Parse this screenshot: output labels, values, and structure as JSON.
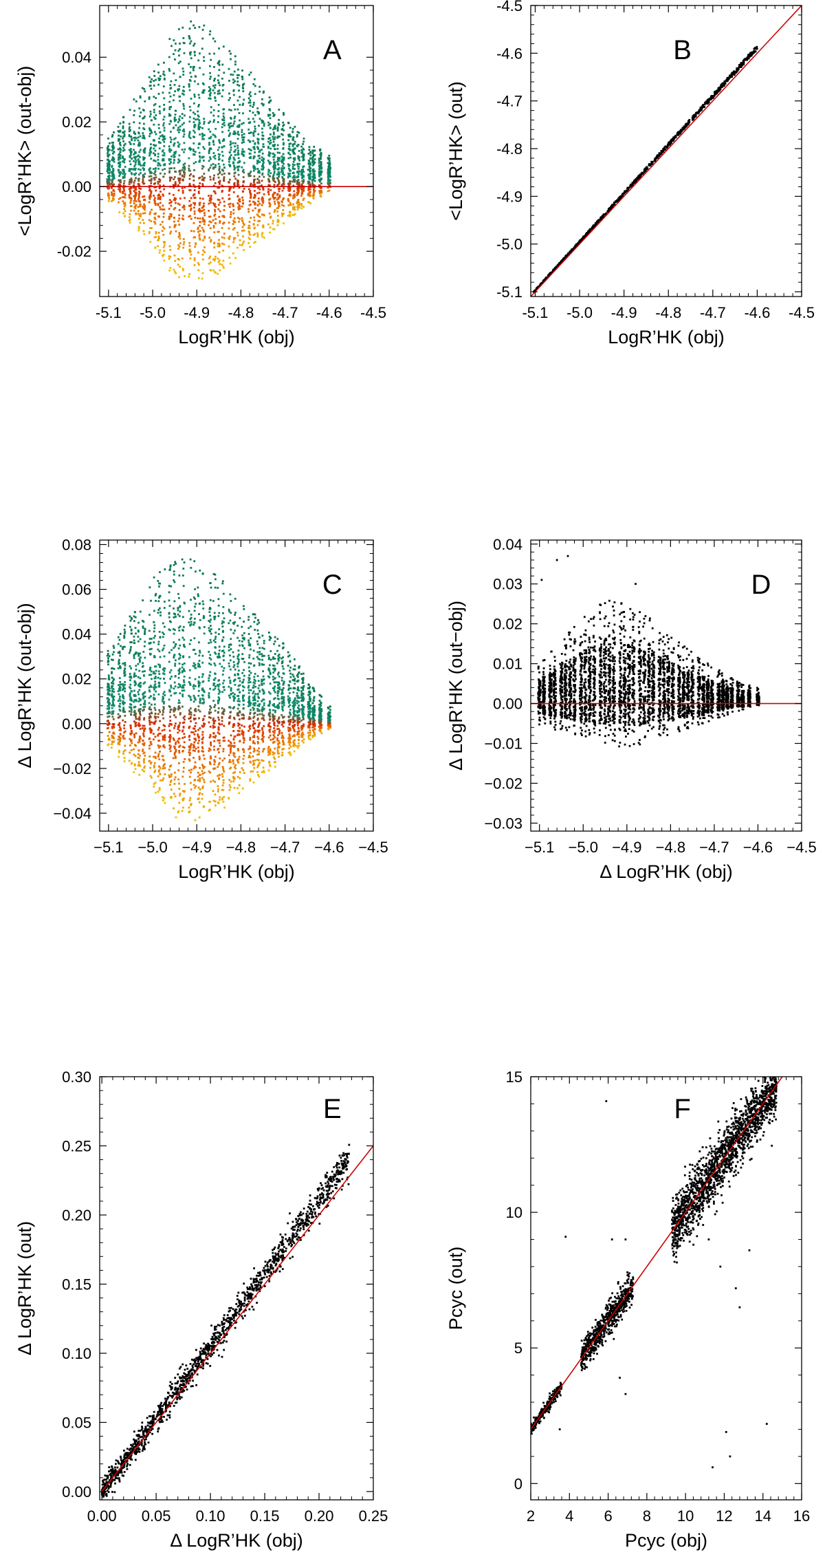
{
  "figure": {
    "colors": {
      "reference_line": "#cc0000",
      "black_points": "#000000",
      "teal": "#0e8a6a",
      "green": "#0b6e45",
      "red": "#d42a00",
      "orange": "#ea7a00",
      "yellow": "#f0c400"
    }
  },
  "chart_data": [
    {
      "panel": "A",
      "type": "scatter",
      "color_mode": "diff",
      "xlabel": "LogR’HK (obj)",
      "ylabel": "<LogR’HK> (out-obj)",
      "xlim": [
        -5.12,
        -4.5
      ],
      "ylim": [
        -0.034,
        0.056
      ],
      "xticks": [
        -5.1,
        -5.0,
        -4.9,
        -4.8,
        -4.7,
        -4.6,
        -4.5
      ],
      "xtick_labels": [
        "-5.1",
        "-5.0",
        "-4.9",
        "-4.8",
        "-4.7",
        "-4.6",
        "-4.5"
      ],
      "yticks": [
        -0.02,
        0.0,
        0.02,
        0.04
      ],
      "ytick_labels": [
        "-0.02",
        "0.00",
        "0.02",
        "0.04"
      ],
      "reference_line": {
        "kind": "horizontal",
        "y": 0.0
      },
      "columns_x": [
        -5.1,
        -5.09,
        -5.075,
        -5.065,
        -5.05,
        -5.04,
        -5.03,
        -5.02,
        -5.005,
        -4.995,
        -4.985,
        -4.975,
        -4.96,
        -4.95,
        -4.94,
        -4.93,
        -4.915,
        -4.905,
        -4.895,
        -4.885,
        -4.87,
        -4.86,
        -4.85,
        -4.84,
        -4.825,
        -4.815,
        -4.805,
        -4.795,
        -4.78,
        -4.77,
        -4.76,
        -4.75,
        -4.735,
        -4.725,
        -4.715,
        -4.705,
        -4.69,
        -4.68,
        -4.67,
        -4.66,
        -4.645,
        -4.635,
        -4.62,
        -4.6
      ],
      "envelope": {
        "x": [
          -5.11,
          -5.0,
          -4.95,
          -4.9,
          -4.85,
          -4.8,
          -4.75,
          -4.7,
          -4.65,
          -4.6
        ],
        "top": [
          0.013,
          0.035,
          0.049,
          0.052,
          0.046,
          0.039,
          0.03,
          0.022,
          0.014,
          0.01
        ],
        "bottom": [
          -0.004,
          -0.018,
          -0.028,
          -0.03,
          -0.027,
          -0.021,
          -0.016,
          -0.011,
          -0.006,
          -0.002
        ]
      },
      "annotation": "A",
      "annotation_pos": "top-right"
    },
    {
      "panel": "B",
      "type": "scatter",
      "color_mode": "black",
      "xlabel": "LogR’HK (obj)",
      "ylabel": "<LogR’HK> (out)",
      "xlim": [
        -5.11,
        -4.5
      ],
      "ylim": [
        -5.11,
        -4.5
      ],
      "xticks": [
        -5.1,
        -5.0,
        -4.9,
        -4.8,
        -4.7,
        -4.6,
        -4.5
      ],
      "xtick_labels": [
        "-5.1",
        "-5.0",
        "-4.9",
        "-4.8",
        "-4.7",
        "-4.6",
        "-4.5"
      ],
      "yticks": [
        -5.1,
        -5.0,
        -4.9,
        -4.8,
        -4.7,
        -4.6,
        -4.5
      ],
      "ytick_labels": [
        "-5.1",
        "-5.0",
        "-4.9",
        "-4.8",
        "-4.7",
        "-4.6",
        "-4.5"
      ],
      "reference_line": {
        "kind": "diagonal",
        "from": [
          -5.11,
          -5.11
        ],
        "to": [
          -4.5,
          -4.5
        ]
      },
      "trend": {
        "x_range": [
          -5.105,
          -4.6
        ],
        "offset_at_start": 0.003,
        "offset_at_end": 0.012
      },
      "annotation": "B",
      "annotation_pos": "top-center"
    },
    {
      "panel": "C",
      "type": "scatter",
      "color_mode": "diff",
      "xlabel": "LogR’HK (obj)",
      "ylabel": "Δ LogR’HK (out-obj)",
      "xlim": [
        -5.12,
        -4.5
      ],
      "ylim": [
        -0.048,
        0.082
      ],
      "xticks": [
        -5.1,
        -5.0,
        -4.9,
        -4.8,
        -4.7,
        -4.6,
        -4.5
      ],
      "xtick_labels": [
        "−5.1",
        "−5.0",
        "−4.9",
        "−4.8",
        "−4.7",
        "−4.6",
        "−4.5"
      ],
      "yticks": [
        -0.04,
        -0.02,
        0.0,
        0.02,
        0.04,
        0.06,
        0.08
      ],
      "ytick_labels": [
        "−0.04",
        "−0.02",
        "0.00",
        "0.02",
        "0.04",
        "0.06",
        "0.08"
      ],
      "columns_x": [
        -5.1,
        -5.09,
        -5.075,
        -5.065,
        -5.05,
        -5.04,
        -5.03,
        -5.02,
        -5.005,
        -4.995,
        -4.985,
        -4.975,
        -4.96,
        -4.95,
        -4.94,
        -4.93,
        -4.915,
        -4.905,
        -4.895,
        -4.885,
        -4.87,
        -4.86,
        -4.85,
        -4.84,
        -4.825,
        -4.815,
        -4.805,
        -4.795,
        -4.78,
        -4.77,
        -4.76,
        -4.75,
        -4.735,
        -4.725,
        -4.715,
        -4.705,
        -4.69,
        -4.68,
        -4.67,
        -4.66,
        -4.645,
        -4.635,
        -4.62,
        -4.6
      ],
      "envelope": {
        "x": [
          -5.11,
          -5.0,
          -4.95,
          -4.9,
          -4.85,
          -4.8,
          -4.75,
          -4.7,
          -4.65,
          -4.6
        ],
        "top": [
          0.03,
          0.065,
          0.075,
          0.073,
          0.066,
          0.055,
          0.045,
          0.035,
          0.02,
          0.008
        ],
        "bottom": [
          -0.008,
          -0.03,
          -0.042,
          -0.046,
          -0.04,
          -0.032,
          -0.024,
          -0.016,
          -0.008,
          -0.003
        ]
      },
      "annotation": "C",
      "annotation_pos": "top-right"
    },
    {
      "panel": "D",
      "type": "scatter",
      "color_mode": "black",
      "xlabel": "Δ LogR’HK (obj)",
      "ylabel": "Δ LogR’HK (out−obj)",
      "xlim": [
        -5.12,
        -4.5
      ],
      "ylim": [
        -0.032,
        0.041
      ],
      "xticks": [
        -5.1,
        -5.0,
        -4.9,
        -4.8,
        -4.7,
        -4.6,
        -4.5
      ],
      "xtick_labels": [
        "−5.1",
        "−5.0",
        "−4.9",
        "−4.8",
        "−4.7",
        "−4.6",
        "−4.5"
      ],
      "yticks": [
        -0.03,
        -0.02,
        -0.01,
        0.0,
        0.01,
        0.02,
        0.03,
        0.04
      ],
      "ytick_labels": [
        "−0.03",
        "−0.02",
        "−0.01",
        "0.00",
        "0.01",
        "0.02",
        "0.03",
        "0.04"
      ],
      "reference_line": {
        "kind": "horizontal",
        "y": 0.0
      },
      "columns_x": [
        -5.1,
        -5.09,
        -5.075,
        -5.065,
        -5.05,
        -5.04,
        -5.03,
        -5.02,
        -5.005,
        -4.995,
        -4.985,
        -4.975,
        -4.96,
        -4.95,
        -4.94,
        -4.93,
        -4.915,
        -4.905,
        -4.895,
        -4.885,
        -4.87,
        -4.86,
        -4.85,
        -4.84,
        -4.825,
        -4.815,
        -4.805,
        -4.795,
        -4.78,
        -4.77,
        -4.76,
        -4.75,
        -4.735,
        -4.725,
        -4.715,
        -4.705,
        -4.69,
        -4.68,
        -4.67,
        -4.66,
        -4.645,
        -4.635,
        -4.62,
        -4.6
      ],
      "envelope": {
        "x": [
          -5.11,
          -5.0,
          -4.95,
          -4.9,
          -4.85,
          -4.8,
          -4.75,
          -4.7,
          -4.65,
          -4.6
        ],
        "top": [
          0.009,
          0.022,
          0.026,
          0.025,
          0.022,
          0.017,
          0.013,
          0.009,
          0.006,
          0.004
        ],
        "bottom": [
          -0.005,
          -0.009,
          -0.011,
          -0.011,
          -0.01,
          -0.008,
          -0.006,
          -0.004,
          -0.002,
          -0.001
        ]
      },
      "outliers": [
        [
          -5.06,
          0.036
        ],
        [
          -5.035,
          0.037
        ],
        [
          -5.095,
          0.031
        ],
        [
          -4.88,
          0.03
        ]
      ],
      "annotation": "D",
      "annotation_pos": "top-right"
    },
    {
      "panel": "E",
      "type": "scatter",
      "color_mode": "black",
      "xlabel": "Δ LogR’HK (obj)",
      "ylabel": "Δ LogR’HK (out)",
      "xlim": [
        -0.002,
        0.25
      ],
      "ylim": [
        -0.006,
        0.3
      ],
      "xticks": [
        0.0,
        0.05,
        0.1,
        0.15,
        0.2,
        0.25
      ],
      "xtick_labels": [
        "0.00",
        "0.05",
        "0.10",
        "0.15",
        "0.20",
        "0.25"
      ],
      "yticks": [
        0.0,
        0.05,
        0.1,
        0.15,
        0.2,
        0.25,
        0.3
      ],
      "ytick_labels": [
        "0.00",
        "0.05",
        "0.10",
        "0.15",
        "0.20",
        "0.25",
        "0.30"
      ],
      "reference_line": {
        "kind": "diagonal",
        "from": [
          0.0,
          0.0
        ],
        "to": [
          0.25,
          0.25
        ]
      },
      "trend": {
        "x_range": [
          0.0,
          0.228
        ],
        "slope": 1.05,
        "spread_base": 0.004,
        "spread_slope": 0.08
      },
      "annotation": "E",
      "annotation_pos": "top-right"
    },
    {
      "panel": "F",
      "type": "scatter",
      "color_mode": "black",
      "xlabel": "Pcyc (obj)",
      "ylabel": "Pcyc (out)",
      "xlim": [
        2.0,
        16.0
      ],
      "ylim": [
        -0.6,
        15.0
      ],
      "xticks": [
        2,
        4,
        6,
        8,
        10,
        12,
        14,
        16
      ],
      "xtick_labels": [
        "2",
        "4",
        "6",
        "8",
        "10",
        "12",
        "14",
        "16"
      ],
      "yticks": [
        0,
        5,
        10,
        15
      ],
      "ytick_labels": [
        "0",
        "5",
        "10",
        "15"
      ],
      "reference_line": {
        "kind": "diagonal",
        "from": [
          2.0,
          2.0
        ],
        "to": [
          15.0,
          15.0
        ]
      },
      "clusters": [
        {
          "x_range": [
            2.0,
            3.6
          ],
          "spread": 0.12,
          "n": 260
        },
        {
          "x_range": [
            4.6,
            7.3
          ],
          "spread": 0.28,
          "n": 650
        },
        {
          "x_range": [
            9.3,
            14.7
          ],
          "spread": 0.55,
          "n": 1700
        }
      ],
      "outliers": [
        [
          5.9,
          14.1
        ],
        [
          3.8,
          9.1
        ],
        [
          6.2,
          9.0
        ],
        [
          6.9,
          9.0
        ],
        [
          6.6,
          3.9
        ],
        [
          6.9,
          3.3
        ],
        [
          11.8,
          8.0
        ],
        [
          12.8,
          6.5
        ],
        [
          12.1,
          1.9
        ],
        [
          12.3,
          1.0
        ],
        [
          11.4,
          0.6
        ],
        [
          14.2,
          2.2
        ],
        [
          12.6,
          7.2
        ],
        [
          11.2,
          9.0
        ],
        [
          13.3,
          8.6
        ],
        [
          3.5,
          2.0
        ]
      ],
      "annotation": "F",
      "annotation_pos": "top-center"
    }
  ]
}
